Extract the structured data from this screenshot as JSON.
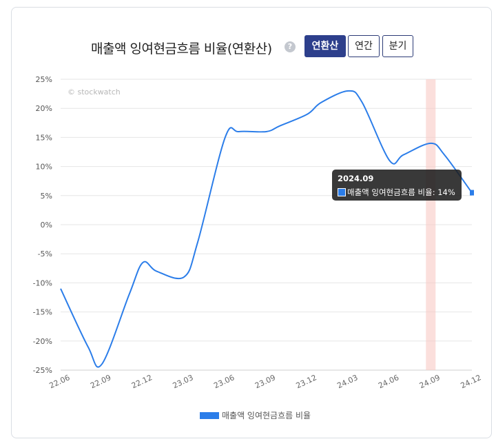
{
  "header": {
    "title": "매출액 잉여현금흐름 비율(연환산)",
    "help_icon": "?",
    "buttons": [
      {
        "label": "연환산",
        "active": true
      },
      {
        "label": "연간",
        "active": false
      },
      {
        "label": "분기",
        "active": false
      }
    ]
  },
  "watermark": "© stockwatch",
  "tooltip": {
    "title": "2024.09",
    "label": "매출액 잉여현금흐름 비율: 14%"
  },
  "legend": {
    "label": "매출액 잉여현금흐름 비율"
  },
  "colors": {
    "line": "#2b7de9",
    "highlight_band": "#f8c9c4",
    "grid": "#e6e6e6",
    "active_button": "#2d3f8c"
  },
  "chart_data": {
    "type": "line",
    "categories": [
      "22.06",
      "22.09",
      "22.12",
      "23.03",
      "23.06",
      "23.09",
      "23.12",
      "24.03",
      "24.06",
      "24.09",
      "24.12"
    ],
    "y_ticks": [
      "25%",
      "20%",
      "15%",
      "10%",
      "5%",
      "0%",
      "-5%",
      "-10%",
      "-15%",
      "-20%",
      "-25%"
    ],
    "ylim": [
      -25,
      25
    ],
    "series": [
      {
        "name": "매출액 잉여현금흐름 비율",
        "x": [
          "22.06",
          "22.08",
          "22.09",
          "22.11",
          "22.12",
          "23.01",
          "23.03",
          "23.04",
          "23.06",
          "23.07",
          "23.09",
          "23.10",
          "23.12",
          "24.01",
          "24.03",
          "24.04",
          "24.06",
          "24.07",
          "24.09",
          "24.10",
          "24.12"
        ],
        "values": [
          -11,
          -21,
          -24,
          -12,
          -6.5,
          -8,
          -9,
          -3,
          15,
          16,
          16,
          17,
          19,
          21,
          23,
          21,
          11,
          12,
          14,
          12,
          5.5
        ]
      }
    ],
    "highlight_category": "24.09",
    "grid": true,
    "legend_position": "bottom"
  }
}
